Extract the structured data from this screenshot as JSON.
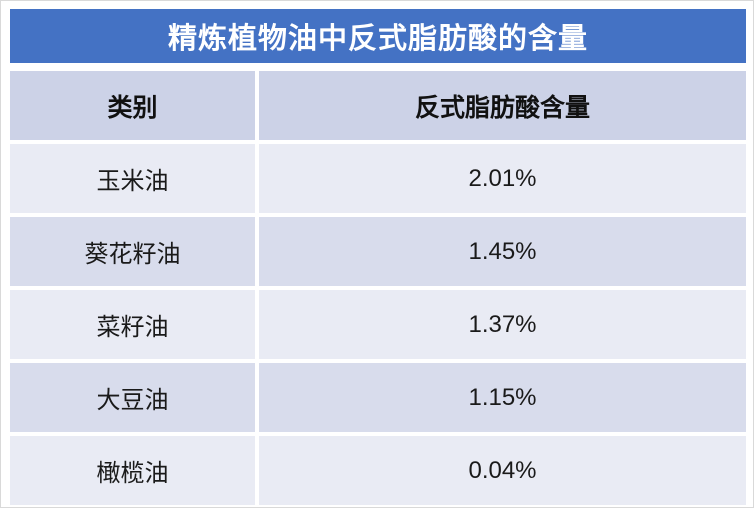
{
  "title": "精炼植物油中反式脂肪酸的含量",
  "table": {
    "headers": [
      "类别",
      "反式脂肪酸含量"
    ],
    "rows": [
      {
        "category": "玉米油",
        "value": "2.01%"
      },
      {
        "category": "葵花籽油",
        "value": "1.45%"
      },
      {
        "category": "菜籽油",
        "value": "1.37%"
      },
      {
        "category": "大豆油",
        "value": "1.15%"
      },
      {
        "category": "橄榄油",
        "value": "0.04%"
      }
    ]
  },
  "chart_data": {
    "type": "table",
    "title": "精炼植物油中反式脂肪酸的含量",
    "columns": [
      "类别",
      "反式脂肪酸含量"
    ],
    "rows": [
      [
        "玉米油",
        "2.01%"
      ],
      [
        "葵花籽油",
        "1.45%"
      ],
      [
        "菜籽油",
        "1.37%"
      ],
      [
        "大豆油",
        "1.15%"
      ],
      [
        "橄榄油",
        "0.04%"
      ]
    ],
    "values_percent": [
      2.01,
      1.45,
      1.37,
      1.15,
      0.04
    ]
  },
  "colors": {
    "title_bar": "#4472c4",
    "title_text": "#ffffff",
    "header_row": "#ccd2e7",
    "row_light": "#e9ebf4",
    "row_dark": "#d8dcec",
    "body_text": "#1a1a1a",
    "background": "#ffffff"
  }
}
